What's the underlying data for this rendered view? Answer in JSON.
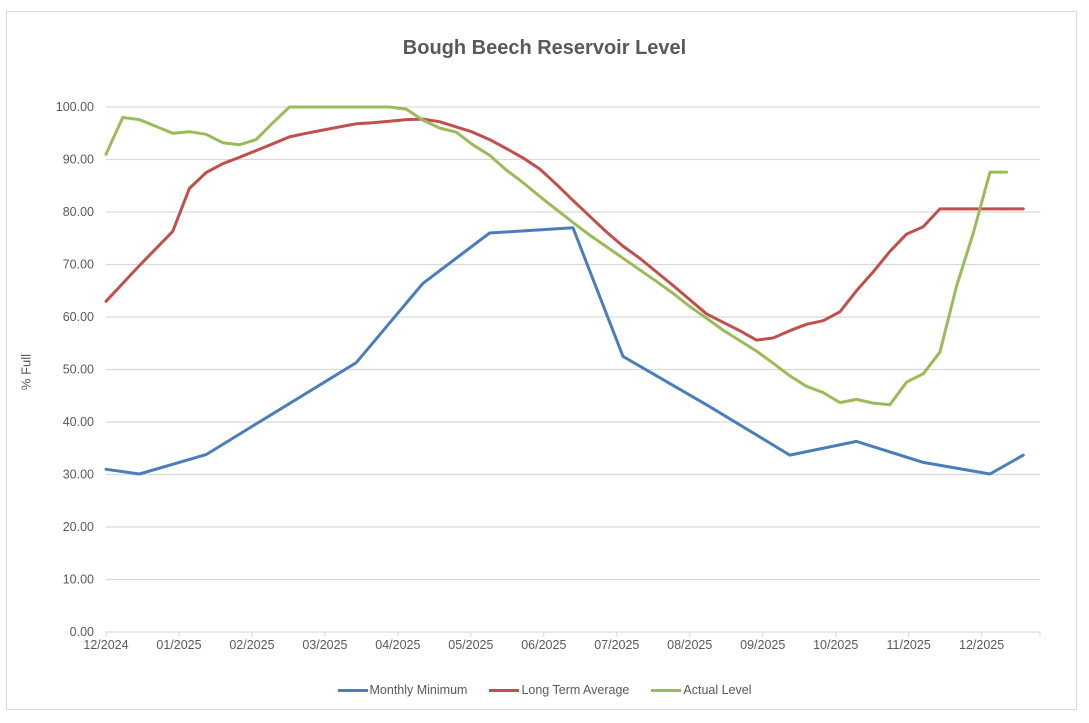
{
  "chart_data": {
    "type": "line",
    "title": "Bough Beech Reservoir Level",
    "xlabel": "",
    "ylabel": "% Full",
    "ylim": [
      0,
      100
    ],
    "yticks": [
      "0.00",
      "10.00",
      "20.00",
      "30.00",
      "40.00",
      "50.00",
      "60.00",
      "70.00",
      "80.00",
      "90.00",
      "100.00"
    ],
    "xticks": [
      "12/2024",
      "01/2025",
      "02/2025",
      "03/2025",
      "04/2025",
      "05/2025",
      "06/2025",
      "07/2025",
      "08/2025",
      "09/2025",
      "10/2025",
      "11/2025",
      "12/2025"
    ],
    "grid": true,
    "legend_position": "bottom",
    "series": [
      {
        "name": "Monthly Minimum",
        "color": "#4a7ebb",
        "x": [
          0,
          2,
          6,
          15,
          19,
          23,
          28,
          31,
          36,
          41,
          45,
          49,
          53,
          55
        ],
        "values": [
          31.0,
          30.1,
          33.8,
          51.3,
          66.4,
          76.0,
          77.0,
          52.5,
          43.3,
          33.7,
          36.3,
          32.3,
          30.1,
          33.7
        ]
      },
      {
        "name": "Long Term Average",
        "color": "#c0504d",
        "x": [
          0,
          2,
          4,
          5,
          6,
          7,
          8,
          9,
          10,
          11,
          12,
          13,
          14,
          15,
          16,
          17,
          18,
          19,
          20,
          21,
          22,
          23,
          24,
          25,
          26,
          27,
          28,
          29,
          30,
          31,
          32,
          33,
          34,
          35,
          36,
          37,
          38,
          39,
          40,
          41,
          42,
          43,
          44,
          45,
          46,
          47,
          48,
          49,
          50,
          51,
          52,
          53,
          54,
          55
        ],
        "values": [
          63.0,
          69.8,
          76.3,
          84.5,
          87.5,
          89.2,
          90.4,
          91.7,
          93.0,
          94.3,
          95.0,
          95.6,
          96.2,
          96.8,
          97.0,
          97.3,
          97.6,
          97.7,
          97.2,
          96.2,
          95.2,
          93.8,
          92.1,
          90.3,
          88.2,
          85.3,
          82.2,
          79.2,
          76.2,
          73.5,
          71.2,
          68.6,
          66.0,
          63.3,
          60.6,
          59.0,
          57.4,
          55.6,
          56.0,
          57.4,
          58.6,
          59.3,
          61.0,
          65.0,
          68.6,
          72.5,
          75.8,
          77.2,
          80.6,
          80.6,
          80.6,
          80.6,
          80.6,
          80.6
        ]
      },
      {
        "name": "Actual Level",
        "color": "#9bbb59",
        "x": [
          0,
          1,
          2,
          3,
          4,
          5,
          6,
          7,
          8,
          9,
          10,
          11,
          12,
          13,
          14,
          15,
          16,
          17,
          18,
          19,
          20,
          21,
          22,
          23,
          24,
          25,
          26,
          27,
          28,
          29,
          30,
          31,
          32,
          33,
          34,
          35,
          36,
          37,
          38,
          39,
          40,
          41,
          42,
          43,
          44,
          45,
          46,
          47,
          48,
          49,
          50,
          51,
          52,
          53,
          54
        ],
        "values": [
          91.0,
          98.0,
          97.6,
          96.3,
          95.0,
          95.3,
          94.8,
          93.2,
          92.8,
          93.8,
          97.0,
          100.0,
          100.0,
          100.0,
          100.0,
          100.0,
          100.0,
          100.0,
          99.6,
          97.5,
          96.0,
          95.2,
          92.8,
          90.8,
          88.0,
          85.6,
          83.0,
          80.5,
          78.0,
          75.6,
          73.4,
          71.2,
          69.0,
          66.8,
          64.5,
          62.0,
          59.8,
          57.5,
          55.5,
          53.5,
          51.2,
          48.8,
          46.8,
          45.6,
          43.7,
          44.3,
          43.6,
          43.3,
          47.6,
          49.2,
          53.3,
          65.9,
          76.0,
          87.6,
          87.6
        ]
      }
    ]
  },
  "legend": {
    "items": [
      {
        "label": "Monthly Minimum",
        "color": "#4a7ebb"
      },
      {
        "label": "Long Term Average",
        "color": "#c0504d"
      },
      {
        "label": "Actual Level",
        "color": "#9bbb59"
      }
    ]
  }
}
